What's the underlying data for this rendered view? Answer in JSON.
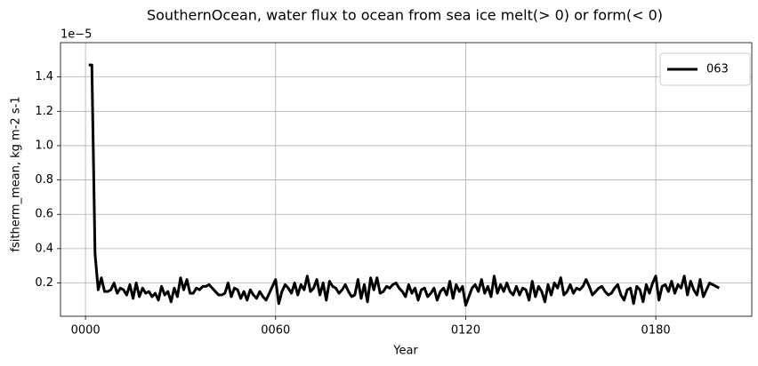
{
  "chart_data": {
    "type": "line",
    "title": "SouthernOcean, water flux to ocean from sea ice melt(> 0) or form(< 0)",
    "x_label": "Year",
    "y_label": "fsitherm_mean, kg m-2 s-1",
    "y_offset_label": "1e−5",
    "x": [
      1,
      2,
      3,
      4,
      5,
      6,
      7,
      8,
      9,
      10,
      11,
      12,
      13,
      14,
      15,
      16,
      17,
      18,
      19,
      20,
      21,
      22,
      23,
      24,
      25,
      26,
      27,
      28,
      29,
      30,
      31,
      32,
      33,
      34,
      35,
      36,
      37,
      38,
      39,
      40,
      41,
      42,
      43,
      44,
      45,
      46,
      47,
      48,
      49,
      50,
      51,
      52,
      53,
      54,
      55,
      56,
      57,
      58,
      59,
      60,
      61,
      62,
      63,
      64,
      65,
      66,
      67,
      68,
      69,
      70,
      71,
      72,
      73,
      74,
      75,
      76,
      77,
      78,
      79,
      80,
      81,
      82,
      83,
      84,
      85,
      86,
      87,
      88,
      89,
      90,
      91,
      92,
      93,
      94,
      95,
      96,
      97,
      98,
      99,
      100,
      101,
      102,
      103,
      104,
      105,
      106,
      107,
      108,
      109,
      110,
      111,
      112,
      113,
      114,
      115,
      116,
      117,
      118,
      119,
      120,
      121,
      122,
      123,
      124,
      125,
      126,
      127,
      128,
      129,
      130,
      131,
      132,
      133,
      134,
      135,
      136,
      137,
      138,
      139,
      140,
      141,
      142,
      143,
      144,
      145,
      146,
      147,
      148,
      149,
      150,
      151,
      152,
      153,
      154,
      155,
      156,
      157,
      158,
      159,
      160,
      161,
      162,
      163,
      164,
      165,
      166,
      167,
      168,
      169,
      170,
      171,
      172,
      173,
      174,
      175,
      176,
      177,
      178,
      179,
      180,
      181,
      182,
      183,
      184,
      185,
      186,
      187,
      188,
      189,
      190,
      191,
      192,
      193,
      194,
      195,
      196,
      197,
      198,
      199,
      200
    ],
    "series": [
      {
        "name": "063",
        "color": "#000000",
        "values": [
          1.47,
          1.47,
          0.37,
          0.16,
          0.23,
          0.15,
          0.15,
          0.16,
          0.2,
          0.14,
          0.17,
          0.16,
          0.13,
          0.19,
          0.11,
          0.2,
          0.12,
          0.17,
          0.14,
          0.15,
          0.12,
          0.14,
          0.1,
          0.18,
          0.13,
          0.15,
          0.09,
          0.17,
          0.12,
          0.23,
          0.16,
          0.22,
          0.14,
          0.14,
          0.17,
          0.16,
          0.18,
          0.18,
          0.19,
          0.17,
          0.15,
          0.13,
          0.13,
          0.14,
          0.2,
          0.12,
          0.17,
          0.16,
          0.11,
          0.15,
          0.1,
          0.16,
          0.13,
          0.11,
          0.15,
          0.12,
          0.1,
          0.14,
          0.18,
          0.22,
          0.08,
          0.15,
          0.19,
          0.17,
          0.14,
          0.2,
          0.13,
          0.19,
          0.16,
          0.24,
          0.15,
          0.17,
          0.22,
          0.13,
          0.2,
          0.1,
          0.21,
          0.18,
          0.17,
          0.14,
          0.16,
          0.19,
          0.15,
          0.12,
          0.13,
          0.22,
          0.11,
          0.19,
          0.09,
          0.23,
          0.16,
          0.23,
          0.14,
          0.15,
          0.18,
          0.17,
          0.19,
          0.2,
          0.17,
          0.15,
          0.12,
          0.19,
          0.14,
          0.17,
          0.1,
          0.16,
          0.17,
          0.12,
          0.14,
          0.17,
          0.1,
          0.15,
          0.17,
          0.13,
          0.21,
          0.11,
          0.19,
          0.15,
          0.18,
          0.07,
          0.12,
          0.17,
          0.19,
          0.15,
          0.22,
          0.14,
          0.18,
          0.12,
          0.24,
          0.14,
          0.19,
          0.15,
          0.2,
          0.15,
          0.13,
          0.18,
          0.13,
          0.17,
          0.16,
          0.1,
          0.21,
          0.12,
          0.18,
          0.15,
          0.09,
          0.19,
          0.13,
          0.2,
          0.17,
          0.23,
          0.13,
          0.15,
          0.19,
          0.14,
          0.17,
          0.16,
          0.18,
          0.22,
          0.18,
          0.13,
          0.15,
          0.17,
          0.18,
          0.15,
          0.13,
          0.14,
          0.17,
          0.19,
          0.13,
          0.1,
          0.16,
          0.17,
          0.08,
          0.18,
          0.16,
          0.09,
          0.19,
          0.14,
          0.2,
          0.24,
          0.1,
          0.18,
          0.19,
          0.15,
          0.21,
          0.14,
          0.19,
          0.17,
          0.24,
          0.13,
          0.21,
          0.16,
          0.13,
          0.22,
          0.12,
          0.16,
          0.2,
          0.19,
          0.18,
          0.17
        ]
      }
    ],
    "xlim": [
      -7.9,
      210.3
    ],
    "xticks": [
      {
        "value": 0,
        "label": "0000"
      },
      {
        "value": 60,
        "label": "0060"
      },
      {
        "value": 120,
        "label": "0120"
      },
      {
        "value": 180,
        "label": "0180"
      }
    ],
    "ylim": [
      0.006,
      1.6
    ],
    "yticks": [
      0.2,
      0.4,
      0.6,
      0.8,
      {
        "value": 1,
        "label": "1.0"
      },
      1.2,
      1.4
    ],
    "grid": true,
    "legend_position": "upper-right"
  }
}
